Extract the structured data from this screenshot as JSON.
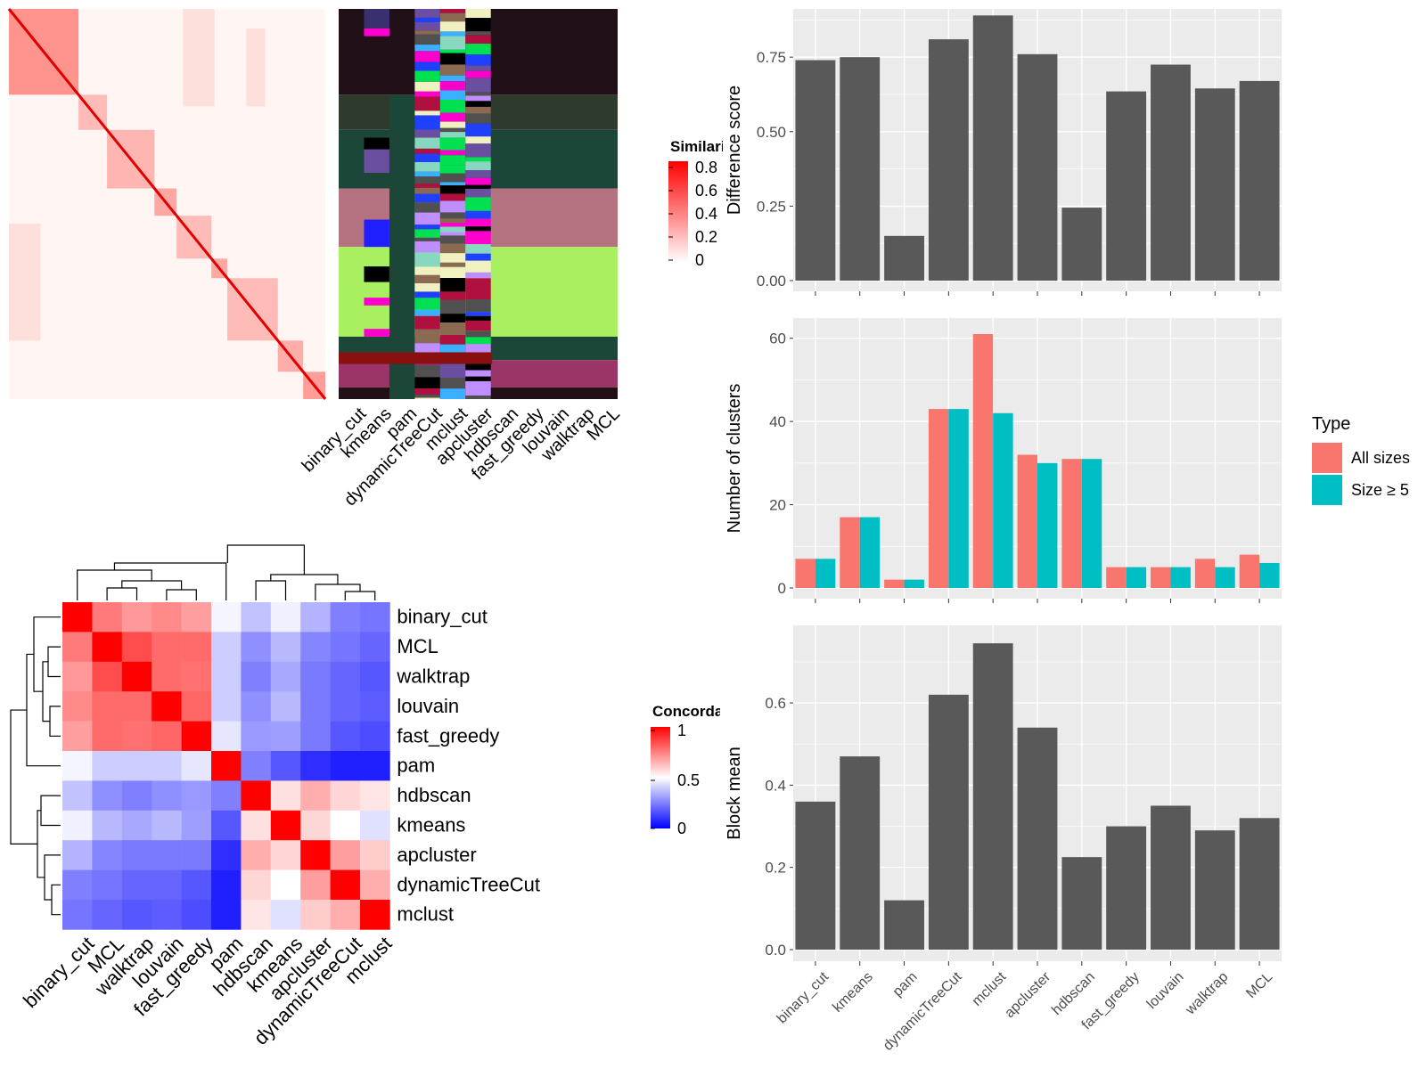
{
  "colors": {
    "panel_bg": "#ebebeb",
    "grid": "#ffffff",
    "bar": "#595959",
    "all_sizes": "#f8766d",
    "size_ge_5": "#00bfc4",
    "similarity_high": "#ff0000",
    "concordance_low": "#0000ff",
    "concordance_mid": "#ffffff",
    "concordance_high": "#ff0000"
  },
  "similarity_heatmap": {
    "legend_title": "Similarity",
    "legend_ticks": [
      "0.8",
      "0.6",
      "0.4",
      "0.2",
      "0"
    ],
    "column_labels": [
      "binary_cut",
      "kmeans",
      "pam",
      "dynamicTreeCut",
      "mclust",
      "apcluster",
      "hdbscan",
      "fast_greedy",
      "louvain",
      "walktrap",
      "MCL"
    ]
  },
  "concordance_heatmap": {
    "legend_title": "Concordance",
    "legend_ticks": [
      "1",
      "0.5",
      "0"
    ],
    "labels": [
      "binary_cut",
      "MCL",
      "walktrap",
      "louvain",
      "fast_greedy",
      "pam",
      "hdbscan",
      "kmeans",
      "apcluster",
      "dynamicTreeCut",
      "mclust"
    ],
    "matrix": [
      [
        1.0,
        0.76,
        0.7,
        0.73,
        0.69,
        0.48,
        0.38,
        0.47,
        0.35,
        0.25,
        0.23
      ],
      [
        0.76,
        1.0,
        0.85,
        0.79,
        0.79,
        0.4,
        0.28,
        0.36,
        0.26,
        0.23,
        0.2
      ],
      [
        0.7,
        0.85,
        1.0,
        0.79,
        0.78,
        0.4,
        0.25,
        0.33,
        0.24,
        0.2,
        0.17
      ],
      [
        0.73,
        0.79,
        0.79,
        1.0,
        0.8,
        0.4,
        0.28,
        0.36,
        0.24,
        0.2,
        0.18
      ],
      [
        0.69,
        0.79,
        0.78,
        0.8,
        1.0,
        0.45,
        0.3,
        0.31,
        0.24,
        0.17,
        0.15
      ],
      [
        0.48,
        0.4,
        0.4,
        0.4,
        0.45,
        1.0,
        0.25,
        0.17,
        0.09,
        0.06,
        0.06
      ],
      [
        0.38,
        0.28,
        0.25,
        0.28,
        0.3,
        0.25,
        1.0,
        0.56,
        0.66,
        0.58,
        0.55
      ],
      [
        0.47,
        0.36,
        0.33,
        0.36,
        0.31,
        0.17,
        0.56,
        1.0,
        0.58,
        0.5,
        0.44
      ],
      [
        0.35,
        0.26,
        0.24,
        0.24,
        0.24,
        0.09,
        0.66,
        0.58,
        1.0,
        0.69,
        0.6
      ],
      [
        0.25,
        0.23,
        0.2,
        0.2,
        0.17,
        0.06,
        0.58,
        0.5,
        0.69,
        1.0,
        0.66
      ],
      [
        0.23,
        0.2,
        0.17,
        0.18,
        0.15,
        0.06,
        0.55,
        0.44,
        0.6,
        0.66,
        1.0
      ]
    ]
  },
  "chart_data": [
    {
      "type": "bar",
      "categories": [
        "binary_cut",
        "kmeans",
        "pam",
        "dynamicTreeCut",
        "mclust",
        "apcluster",
        "hdbscan",
        "fast_greedy",
        "louvain",
        "walktrap",
        "MCL"
      ],
      "values": [
        0.74,
        0.75,
        0.15,
        0.81,
        0.89,
        0.76,
        0.245,
        0.635,
        0.725,
        0.645,
        0.67
      ],
      "ylabel": "Difference score",
      "ylim": [
        0,
        0.9
      ],
      "yticks": [
        "0.00",
        "0.25",
        "0.50",
        "0.75"
      ],
      "grid": true
    },
    {
      "type": "bar",
      "categories": [
        "binary_cut",
        "kmeans",
        "pam",
        "dynamicTreeCut",
        "mclust",
        "apcluster",
        "hdbscan",
        "fast_greedy",
        "louvain",
        "walktrap",
        "MCL"
      ],
      "series": [
        {
          "name": "All sizes",
          "values": [
            7,
            17,
            2,
            43,
            61,
            32,
            31,
            5,
            5,
            7,
            8
          ]
        },
        {
          "name": "Size ≥ 5",
          "values": [
            7,
            17,
            2,
            43,
            42,
            30,
            31,
            5,
            5,
            5,
            6
          ]
        }
      ],
      "ylabel": "Number of clusters",
      "ylim": [
        0,
        64
      ],
      "yticks": [
        "0",
        "20",
        "40",
        "60"
      ],
      "legend_title": "Type",
      "legend_position": "right",
      "grid": true
    },
    {
      "type": "bar",
      "categories": [
        "binary_cut",
        "kmeans",
        "pam",
        "dynamicTreeCut",
        "mclust",
        "apcluster",
        "hdbscan",
        "fast_greedy",
        "louvain",
        "walktrap",
        "MCL"
      ],
      "values": [
        0.36,
        0.47,
        0.12,
        0.62,
        0.745,
        0.54,
        0.225,
        0.3,
        0.35,
        0.29,
        0.32
      ],
      "ylabel": "Block mean",
      "ylim": [
        0,
        0.78
      ],
      "yticks": [
        "0.0",
        "0.2",
        "0.4",
        "0.6"
      ],
      "grid": true
    }
  ]
}
